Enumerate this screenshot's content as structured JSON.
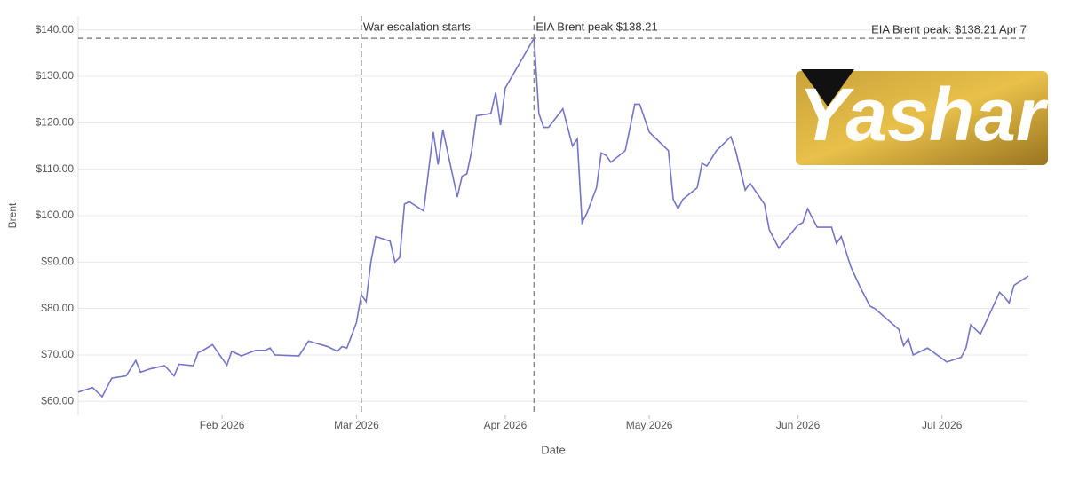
{
  "chart_data": {
    "type": "line",
    "xlabel": "Date",
    "ylabel": "Brent",
    "watermark": "Yashar",
    "xlim": [
      "2026-01-02",
      "2026-07-19"
    ],
    "xticks": [
      {
        "value": "2026-02-01",
        "label": "Feb 2026"
      },
      {
        "value": "2026-03-01",
        "label": "Mar 2026"
      },
      {
        "value": "2026-04-01",
        "label": "Apr 2026"
      },
      {
        "value": "2026-05-01",
        "label": "May 2026"
      },
      {
        "value": "2026-06-01",
        "label": "Jun 2026"
      },
      {
        "value": "2026-07-01",
        "label": "Jul 2026"
      }
    ],
    "ylim": [
      57,
      143
    ],
    "yticks": [
      {
        "value": 60,
        "label": "$60.00"
      },
      {
        "value": 70,
        "label": "$70.00"
      },
      {
        "value": 80,
        "label": "$80.00"
      },
      {
        "value": 90,
        "label": "$90.00"
      },
      {
        "value": 100,
        "label": "$100.00"
      },
      {
        "value": 110,
        "label": "$110.00"
      },
      {
        "value": 120,
        "label": "$120.00"
      },
      {
        "value": 130,
        "label": "$130.00"
      },
      {
        "value": 140,
        "label": "$140.00"
      }
    ],
    "grid": true,
    "vlines": [
      {
        "x": "2026-03-02",
        "text": "War escalation starts"
      },
      {
        "x": "2026-04-07",
        "text": "EIA Brent peak $138.21"
      }
    ],
    "hline": {
      "y": 138.21,
      "text": "EIA Brent peak: $138.21 Apr 7"
    },
    "x": [
      "2026-01-02",
      "2026-01-05",
      "2026-01-07",
      "2026-01-09",
      "2026-01-12",
      "2026-01-14",
      "2026-01-15",
      "2026-01-17",
      "2026-01-20",
      "2026-01-22",
      "2026-01-23",
      "2026-01-26",
      "2026-01-27",
      "2026-01-28",
      "2026-01-30",
      "2026-02-02",
      "2026-02-03",
      "2026-02-05",
      "2026-02-08",
      "2026-02-10",
      "2026-02-11",
      "2026-02-12",
      "2026-02-17",
      "2026-02-19",
      "2026-02-23",
      "2026-02-25",
      "2026-02-26",
      "2026-02-27",
      "2026-03-01",
      "2026-03-02",
      "2026-03-03",
      "2026-03-04",
      "2026-03-05",
      "2026-03-08",
      "2026-03-09",
      "2026-03-10",
      "2026-03-11",
      "2026-03-12",
      "2026-03-15",
      "2026-03-17",
      "2026-03-18",
      "2026-03-19",
      "2026-03-22",
      "2026-03-23",
      "2026-03-24",
      "2026-03-25",
      "2026-03-26",
      "2026-03-29",
      "2026-03-30",
      "2026-03-31",
      "2026-04-01",
      "2026-04-07",
      "2026-04-08",
      "2026-04-09",
      "2026-04-10",
      "2026-04-13",
      "2026-04-15",
      "2026-04-16",
      "2026-04-17",
      "2026-04-18",
      "2026-04-20",
      "2026-04-21",
      "2026-04-22",
      "2026-04-23",
      "2026-04-26",
      "2026-04-28",
      "2026-04-29",
      "2026-05-01",
      "2026-05-05",
      "2026-05-06",
      "2026-05-07",
      "2026-05-08",
      "2026-05-11",
      "2026-05-12",
      "2026-05-13",
      "2026-05-15",
      "2026-05-18",
      "2026-05-19",
      "2026-05-21",
      "2026-05-22",
      "2026-05-25",
      "2026-05-26",
      "2026-05-28",
      "2026-06-01",
      "2026-06-02",
      "2026-06-03",
      "2026-06-05",
      "2026-06-08",
      "2026-06-09",
      "2026-06-10",
      "2026-06-12",
      "2026-06-14",
      "2026-06-16",
      "2026-06-17",
      "2026-06-22",
      "2026-06-23",
      "2026-06-24",
      "2026-06-25",
      "2026-06-28",
      "2026-07-02",
      "2026-07-05",
      "2026-07-06",
      "2026-07-07",
      "2026-07-09",
      "2026-07-13",
      "2026-07-14",
      "2026-07-15",
      "2026-07-16",
      "2026-07-19"
    ],
    "series": [
      {
        "name": "Brent",
        "color": "#7474c8",
        "values": [
          62,
          63,
          61,
          65,
          65.5,
          68.8,
          66.3,
          67,
          67.7,
          65.5,
          68,
          67.7,
          70.5,
          71,
          72.2,
          67.8,
          70.8,
          69.8,
          71,
          71,
          71.5,
          70,
          69.8,
          73,
          71.8,
          70.8,
          71.8,
          71.5,
          77,
          83,
          81.5,
          90,
          95.5,
          94.5,
          90,
          91,
          102.5,
          103,
          101,
          118,
          111,
          118.5,
          104,
          108.5,
          109,
          114,
          121.5,
          122,
          126.5,
          119.5,
          127.5,
          138.21,
          122,
          119,
          119,
          123,
          115,
          116.5,
          98.5,
          100.5,
          106,
          113.5,
          113,
          111.5,
          114,
          124,
          124,
          118,
          114,
          103.5,
          101.5,
          103.5,
          106,
          111.3,
          110.7,
          114,
          117,
          114,
          105.5,
          107,
          102.5,
          97,
          93,
          98,
          98.5,
          101.5,
          97.5,
          97.5,
          94,
          95.5,
          89,
          84.5,
          80.5,
          80,
          75.5,
          72,
          73.5,
          70,
          71.5,
          68.5,
          69.5,
          71.5,
          76.5,
          74.5,
          83.5,
          82.5,
          81.2,
          85,
          87
        ]
      }
    ]
  }
}
